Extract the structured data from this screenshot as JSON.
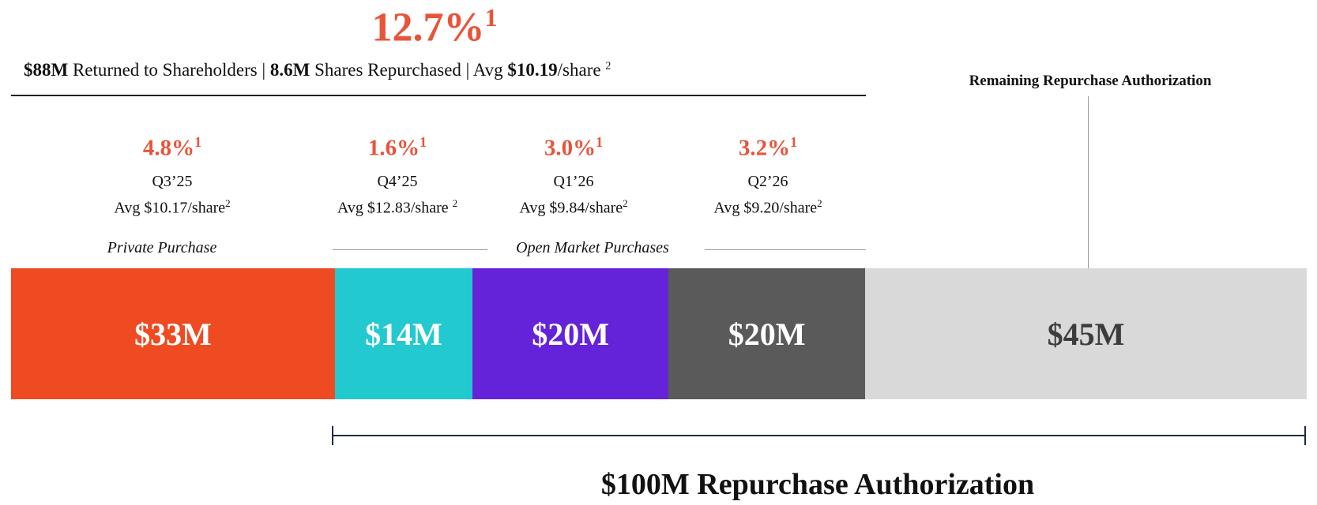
{
  "headline": {
    "pct": "12.7%",
    "sup": "1"
  },
  "summary": {
    "returned_value": "$88M",
    "returned_text": " Returned to Shareholders | ",
    "shares_value": "8.6M",
    "shares_text": " Shares Repurchased | Avg ",
    "avg_value": "$10.19",
    "avg_unit": "/share ",
    "sup": "2"
  },
  "remaining_label": "Remaining Repurchase Authorization",
  "quarters": [
    {
      "pct": "4.8%",
      "pct_sup": "1",
      "name": "Q3’25",
      "avg": "Avg $10.17/share",
      "avg_sup": "2"
    },
    {
      "pct": "1.6%",
      "pct_sup": "1",
      "name": "Q4’25",
      "avg": "Avg $12.83/share ",
      "avg_sup": "2"
    },
    {
      "pct": "3.0%",
      "pct_sup": "1",
      "name": "Q1’26",
      "avg": "Avg $9.84/share",
      "avg_sup": "2"
    },
    {
      "pct": "3.2%",
      "pct_sup": "1",
      "name": "Q2’26",
      "avg": "Avg $9.20/share",
      "avg_sup": "2"
    }
  ],
  "purchase_labels": {
    "private": "Private Purchase",
    "open_market": "Open Market Purchases"
  },
  "footer_label": "$100M Repurchase Authorization",
  "chart_data": {
    "type": "bar",
    "orientation": "horizontal-stacked",
    "categories": [
      "Q3’25",
      "Q4’25",
      "Q1’26",
      "Q2’26",
      "Remaining Repurchase Authorization"
    ],
    "values": [
      33,
      14,
      20,
      20,
      45
    ],
    "labels": [
      "$33M",
      "$14M",
      "$20M",
      "$20M",
      "$45M"
    ],
    "unit": "$M",
    "colors": [
      "#ee4b22",
      "#22c9cf",
      "#6523d9",
      "#5a5a5a",
      "#d9d9d9"
    ],
    "total": 132
  }
}
